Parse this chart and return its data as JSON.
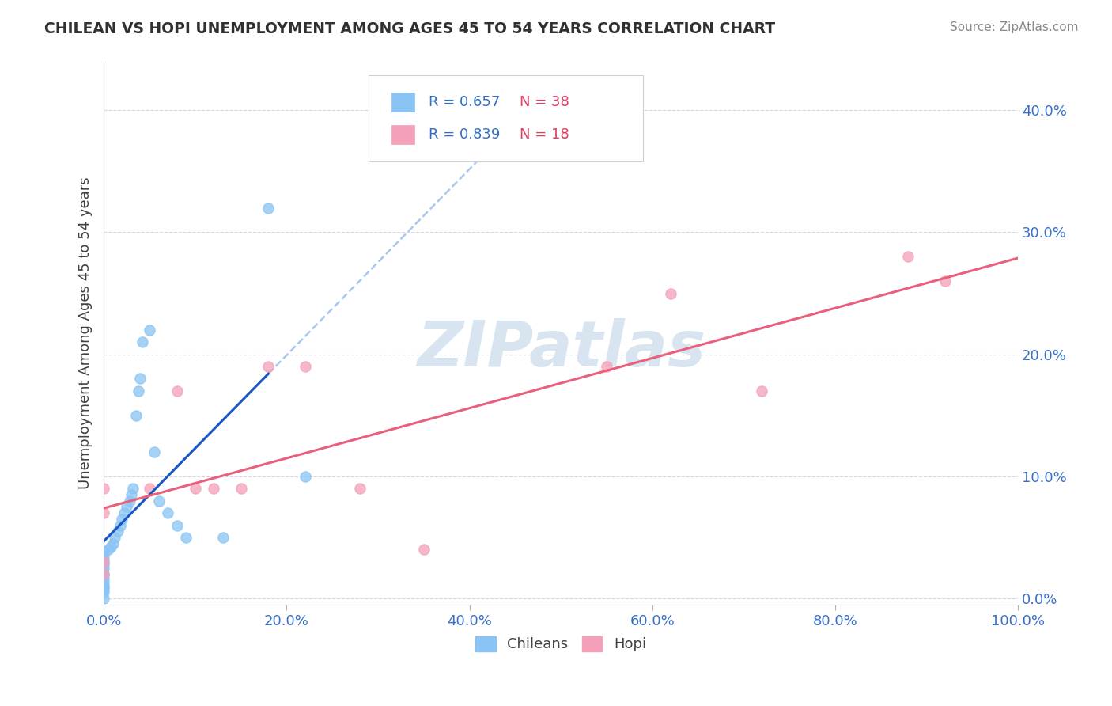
{
  "title": "CHILEAN VS HOPI UNEMPLOYMENT AMONG AGES 45 TO 54 YEARS CORRELATION CHART",
  "source": "Source: ZipAtlas.com",
  "ylabel": "Unemployment Among Ages 45 to 54 years",
  "xlim": [
    0.0,
    1.0
  ],
  "ylim": [
    -0.005,
    0.44
  ],
  "chileans_x": [
    0.0,
    0.0,
    0.0,
    0.0,
    0.0,
    0.0,
    0.0,
    0.0,
    0.0,
    0.0,
    0.0,
    0.0,
    0.0,
    0.005,
    0.008,
    0.01,
    0.012,
    0.015,
    0.018,
    0.02,
    0.022,
    0.025,
    0.028,
    0.03,
    0.032,
    0.035,
    0.038,
    0.04,
    0.042,
    0.05,
    0.055,
    0.06,
    0.07,
    0.08,
    0.09,
    0.13,
    0.18,
    0.22
  ],
  "chileans_y": [
    0.0,
    0.005,
    0.008,
    0.01,
    0.012,
    0.015,
    0.018,
    0.02,
    0.025,
    0.028,
    0.032,
    0.035,
    0.038,
    0.04,
    0.042,
    0.045,
    0.05,
    0.055,
    0.06,
    0.065,
    0.07,
    0.075,
    0.08,
    0.085,
    0.09,
    0.15,
    0.17,
    0.18,
    0.21,
    0.22,
    0.12,
    0.08,
    0.07,
    0.06,
    0.05,
    0.05,
    0.32,
    0.1
  ],
  "hopi_x": [
    0.0,
    0.0,
    0.0,
    0.0,
    0.05,
    0.08,
    0.1,
    0.12,
    0.15,
    0.18,
    0.22,
    0.28,
    0.35,
    0.55,
    0.62,
    0.72,
    0.88,
    0.92
  ],
  "hopi_y": [
    0.02,
    0.03,
    0.07,
    0.09,
    0.09,
    0.17,
    0.09,
    0.09,
    0.09,
    0.19,
    0.19,
    0.09,
    0.04,
    0.19,
    0.25,
    0.17,
    0.28,
    0.26
  ],
  "chileans_color": "#89C4F4",
  "hopi_color": "#F4A0B8",
  "chileans_line_color": "#1A56C4",
  "hopi_line_color": "#E8607A",
  "dash_line_color": "#A8C8F0",
  "R_chileans": 0.657,
  "N_chileans": 38,
  "R_hopi": 0.839,
  "N_hopi": 18,
  "legend_R_color": "#3070C8",
  "legend_N_color": "#E04060",
  "background_color": "#ffffff",
  "grid_color": "#C8D0D8",
  "watermark_color": "#D8E4F0",
  "title_color": "#303030",
  "axis_label_color": "#404040",
  "tick_color": "#3870C8",
  "source_color": "#888888"
}
